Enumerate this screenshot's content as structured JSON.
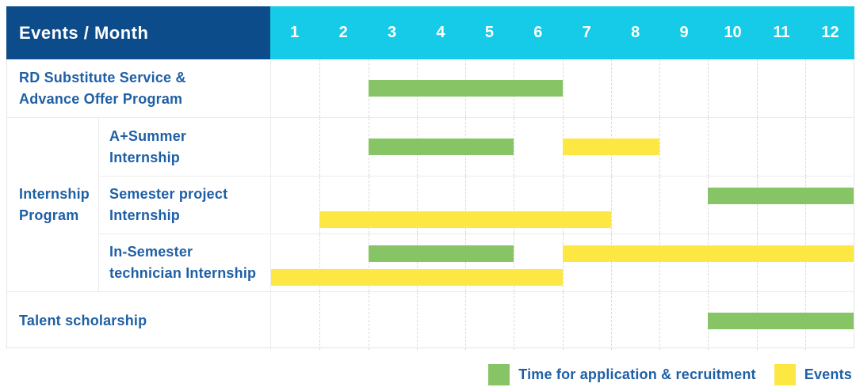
{
  "header": {
    "title": "Events / Month",
    "months": [
      "1",
      "2",
      "3",
      "4",
      "5",
      "6",
      "7",
      "8",
      "9",
      "10",
      "11",
      "12"
    ]
  },
  "colors": {
    "header_bg": "#0d4c8a",
    "months_bg": "#15cbe8",
    "application": "#87c465",
    "event": "#fde843",
    "label_text": "#1e5fa6"
  },
  "legend": [
    {
      "key": "application",
      "label": "Time for application & recruitment"
    },
    {
      "key": "event",
      "label": "Events"
    }
  ],
  "sections": [
    {
      "group": null,
      "rows": [
        {
          "label_lines": [
            "RD Substitute Service &",
            "Advance Offer Program"
          ],
          "bars": [
            {
              "kind": "application",
              "start": 3,
              "end": 6,
              "lane": "center"
            }
          ]
        }
      ]
    },
    {
      "group": {
        "label_lines": [
          "Internship",
          "Program"
        ]
      },
      "rows": [
        {
          "label_lines": [
            "A+Summer",
            "Internship"
          ],
          "bars": [
            {
              "kind": "application",
              "start": 3,
              "end": 5,
              "lane": "center"
            },
            {
              "kind": "event",
              "start": 7,
              "end": 8,
              "lane": "center"
            }
          ]
        },
        {
          "label_lines": [
            "Semester project",
            "Internship"
          ],
          "bars": [
            {
              "kind": "application",
              "start": 10,
              "end": 12,
              "lane": "top"
            },
            {
              "kind": "event",
              "start": 2,
              "end": 7,
              "lane": "bottom"
            }
          ]
        },
        {
          "label_lines": [
            "In-Semester",
            "technician Internship"
          ],
          "bars": [
            {
              "kind": "application",
              "start": 3,
              "end": 5,
              "lane": "top"
            },
            {
              "kind": "event",
              "start": 7,
              "end": 12,
              "lane": "top"
            },
            {
              "kind": "event",
              "start": 1,
              "end": 6,
              "lane": "bottom"
            }
          ]
        }
      ]
    },
    {
      "group": null,
      "rows": [
        {
          "label_lines": [
            "Talent scholarship"
          ],
          "bars": [
            {
              "kind": "application",
              "start": 10,
              "end": 12,
              "lane": "center"
            }
          ]
        }
      ]
    }
  ],
  "chart_data": {
    "type": "bar",
    "subtype": "gantt-timeline",
    "title": "Events / Month",
    "x_axis": {
      "label": "Month",
      "categories": [
        1,
        2,
        3,
        4,
        5,
        6,
        7,
        8,
        9,
        10,
        11,
        12
      ]
    },
    "legend": [
      "Time for application & recruitment",
      "Events"
    ],
    "legend_position": "bottom-right",
    "grid": "dashed-vertical-month-lines",
    "series": [
      {
        "row": "RD Substitute Service & Advance Offer Program",
        "segments": [
          {
            "type": "application_recruitment",
            "start_month": 3,
            "end_month": 6
          }
        ]
      },
      {
        "row": "Internship Program — A+Summer Internship",
        "segments": [
          {
            "type": "application_recruitment",
            "start_month": 3,
            "end_month": 5
          },
          {
            "type": "event",
            "start_month": 7,
            "end_month": 8
          }
        ]
      },
      {
        "row": "Internship Program — Semester project Internship",
        "segments": [
          {
            "type": "application_recruitment",
            "start_month": 10,
            "end_month": 12
          },
          {
            "type": "event",
            "start_month": 2,
            "end_month": 7
          }
        ]
      },
      {
        "row": "Internship Program — In-Semester technician Internship",
        "segments": [
          {
            "type": "application_recruitment",
            "start_month": 3,
            "end_month": 5
          },
          {
            "type": "event",
            "start_month": 7,
            "end_month": 12
          },
          {
            "type": "event",
            "start_month": 1,
            "end_month": 6
          }
        ]
      },
      {
        "row": "Talent scholarship",
        "segments": [
          {
            "type": "application_recruitment",
            "start_month": 10,
            "end_month": 12
          }
        ]
      }
    ]
  }
}
